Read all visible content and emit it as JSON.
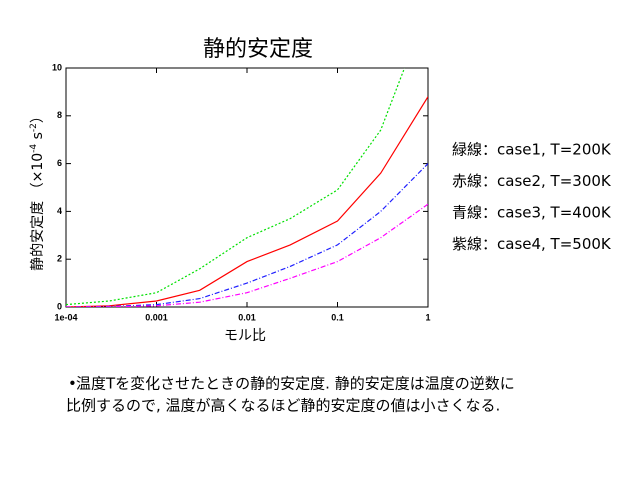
{
  "chart_data": {
    "type": "line",
    "title": "静的安定度",
    "xlabel": "モル比",
    "ylabel_parts": [
      "静的安定度 （×10",
      "-4",
      " s",
      "-2",
      "）"
    ],
    "xscale": "log",
    "xlim": [
      0.0001,
      1
    ],
    "xticks": [
      {
        "value": 0.0001,
        "label": "1e-04"
      },
      0.001,
      0.01,
      0.1,
      1
    ],
    "ylim": [
      0,
      10
    ],
    "yticks": [
      0,
      2,
      4,
      6,
      8,
      10
    ],
    "x": [
      0.0001,
      0.0003,
      0.001,
      0.003,
      0.01,
      0.03,
      0.1,
      0.3,
      1
    ],
    "series": [
      {
        "name": "緑線：case1, T=200K",
        "color": "#00e000",
        "style": "dotted",
        "x": [
          0.0001,
          0.0003,
          0.001,
          0.003,
          0.01,
          0.03,
          0.1,
          0.3,
          0.55
        ],
        "values": [
          0.1,
          0.25,
          0.6,
          1.6,
          2.9,
          3.7,
          4.9,
          7.4,
          10
        ]
      },
      {
        "name": "赤線：case2, T=300K",
        "color": "#ff0000",
        "style": "solid",
        "values": [
          0,
          0.05,
          0.25,
          0.7,
          1.9,
          2.6,
          3.6,
          5.6,
          8.8
        ]
      },
      {
        "name": "青線：case3, T=400K",
        "color": "#2020ff",
        "style": "dashdot",
        "values": [
          0,
          0.02,
          0.1,
          0.35,
          1.0,
          1.7,
          2.6,
          4.0,
          6.0
        ]
      },
      {
        "name": "紫線：case4, T=500K",
        "color": "#ff00ff",
        "style": "dashdot",
        "values": [
          0,
          0.01,
          0.05,
          0.2,
          0.6,
          1.2,
          1.9,
          2.9,
          4.3
        ]
      }
    ],
    "note": [
      "温度Tを変化させたときの静的安定度. 静的安定度は温度の逆数に",
      "比例するので, 温度が高くなるほど静的安定度の値は小さくなる."
    ]
  }
}
